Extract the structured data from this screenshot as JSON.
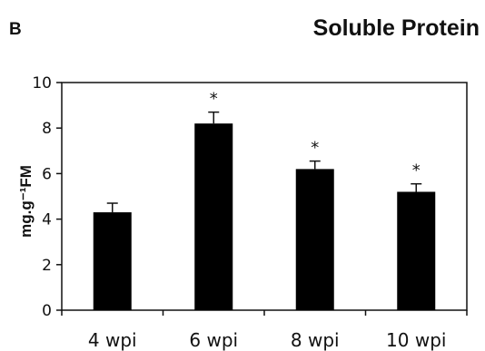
{
  "panel_label": "B",
  "chart_data": {
    "type": "bar",
    "title": "Soluble Protein",
    "xlabel": "",
    "ylabel": "mg.g⁻¹FM",
    "categories": [
      "4 wpi",
      "6 wpi",
      "8 wpi",
      "10 wpi"
    ],
    "values": [
      4.3,
      8.2,
      6.2,
      5.2
    ],
    "errors": [
      0.4,
      0.5,
      0.35,
      0.35
    ],
    "significance": [
      "",
      "*",
      "*",
      "*"
    ],
    "ylim": [
      0,
      10
    ],
    "yticks": [
      0,
      2,
      4,
      6,
      8,
      10
    ],
    "grid": false,
    "bar_color": "#000000"
  }
}
